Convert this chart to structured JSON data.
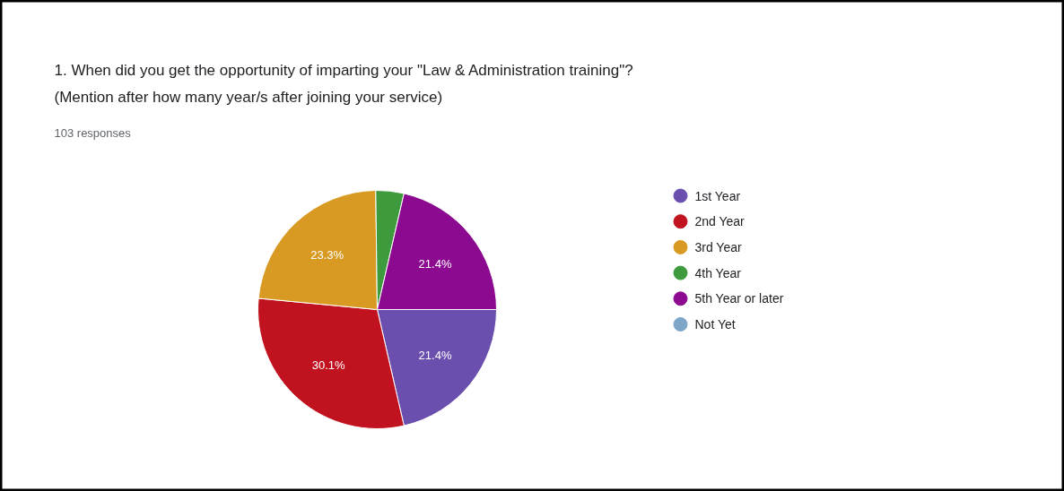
{
  "chart_data": {
    "type": "pie",
    "title": "1. When did you get the opportunity of imparting your \"Law & Administration training\"?",
    "subtitle": "(Mention after how many year/s after joining your service)",
    "annotations": [
      "103 responses"
    ],
    "categories": [
      "1st Year",
      "2nd Year",
      "3rd Year",
      "4th Year",
      "5th Year or later",
      "Not Yet"
    ],
    "values": [
      21.4,
      30.1,
      23.3,
      3.8,
      21.4,
      0
    ],
    "colors": [
      "#6a4fae",
      "#c1121f",
      "#d99a23",
      "#3d9a3d",
      "#8b0a8f",
      "#7ea6c9"
    ],
    "value_labels": [
      "21.4%",
      "30.1%",
      "23.3%",
      null,
      "21.4%",
      null
    ],
    "legend": "right"
  }
}
